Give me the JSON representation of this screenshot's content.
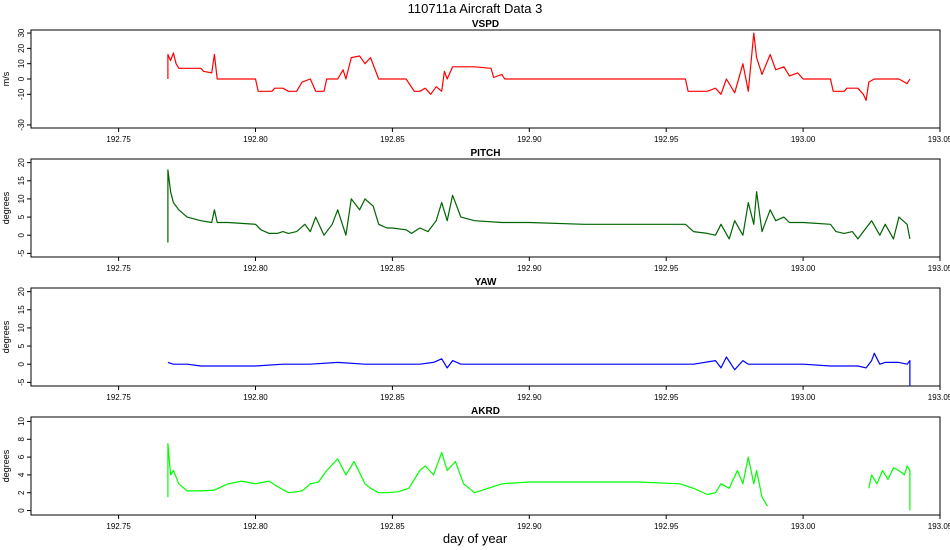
{
  "title": "110711a   Aircraft Data 3",
  "xlabel": "day of year",
  "colors": {
    "VSPD": "#ff0000",
    "PITCH": "#006400",
    "YAW": "#0000ff",
    "AKRD": "#00ff00"
  },
  "chart_data": [
    {
      "type": "line",
      "title": "VSPD",
      "ylabel": "m/s",
      "xlim": [
        192.718,
        193.05
      ],
      "ylim": [
        -32,
        32
      ],
      "yticks": [
        -30,
        -10,
        0,
        10,
        20,
        30
      ],
      "xticks": [
        192.75,
        192.8,
        192.85,
        192.9,
        192.95,
        193.0,
        193.05
      ],
      "xtick_labels": [
        "192.75",
        "192.80",
        "192.85",
        "192.90",
        "192.95",
        "193.00",
        "193.05"
      ],
      "grid": false,
      "series": [
        {
          "color": "#ff0000",
          "x": [
            192.768,
            192.768,
            192.769,
            192.77,
            192.771,
            192.772,
            192.78,
            192.781,
            192.784,
            192.785,
            192.786,
            192.79,
            192.8,
            192.801,
            192.806,
            192.807,
            192.81,
            192.812,
            192.815,
            192.817,
            192.82,
            192.822,
            192.825,
            192.826,
            192.83,
            192.832,
            192.833,
            192.835,
            192.838,
            192.84,
            192.842,
            192.845,
            192.85,
            192.855,
            192.858,
            192.86,
            192.862,
            192.864,
            192.866,
            192.868,
            192.869,
            192.87,
            192.872,
            192.88,
            192.886,
            192.887,
            192.89,
            192.891,
            192.9,
            192.92,
            192.94,
            192.957,
            192.958,
            192.965,
            192.968,
            192.97,
            192.972,
            192.975,
            192.978,
            192.98,
            192.982,
            192.983,
            192.985,
            192.988,
            192.99,
            192.993,
            192.995,
            192.998,
            193.0,
            193.005,
            193.01,
            193.011,
            193.015,
            193.016,
            193.02,
            193.022,
            193.023,
            193.024,
            193.026,
            193.028,
            193.03,
            193.035,
            193.038,
            193.039
          ],
          "y": [
            0,
            16,
            12,
            17,
            10,
            7,
            7,
            5,
            4,
            16,
            0,
            0,
            0,
            -8,
            -8,
            -6,
            -6,
            -8,
            -8,
            -2,
            0,
            -8,
            -8,
            0,
            0,
            6,
            0,
            14,
            15,
            10,
            14,
            0,
            0,
            0,
            -8,
            -8,
            -6,
            -10,
            -5,
            -8,
            5,
            0,
            8,
            8,
            7,
            1,
            3,
            0,
            0,
            0,
            0,
            0,
            -8,
            -8,
            -6,
            -10,
            0,
            -9,
            10,
            -8,
            30,
            14,
            3,
            16,
            6,
            8,
            2,
            4,
            0,
            0,
            0,
            -8,
            -8,
            -6,
            -6,
            -10,
            -14,
            -2,
            0,
            0,
            0,
            0,
            -3,
            0
          ]
        }
      ]
    },
    {
      "type": "line",
      "title": "PITCH",
      "ylabel": "degrees",
      "xlim": [
        192.718,
        193.05
      ],
      "ylim": [
        -6,
        21
      ],
      "yticks": [
        -5,
        0,
        5,
        10,
        15,
        20
      ],
      "xticks": [
        192.75,
        192.8,
        192.85,
        192.9,
        192.95,
        193.0,
        193.05
      ],
      "xtick_labels": [
        "192.75",
        "192.80",
        "192.85",
        "192.90",
        "192.95",
        "193.00",
        "193.05"
      ],
      "grid": false,
      "series": [
        {
          "color": "#006400",
          "x": [
            192.768,
            192.768,
            192.769,
            192.77,
            192.772,
            192.775,
            192.78,
            192.784,
            192.785,
            192.786,
            192.79,
            192.8,
            192.802,
            192.805,
            192.808,
            192.81,
            192.812,
            192.815,
            192.818,
            192.82,
            192.822,
            192.825,
            192.828,
            192.83,
            192.833,
            192.835,
            192.838,
            192.84,
            192.843,
            192.845,
            192.848,
            192.85,
            192.855,
            192.857,
            192.86,
            192.863,
            192.866,
            192.868,
            192.87,
            192.872,
            192.875,
            192.88,
            192.89,
            192.9,
            192.92,
            192.94,
            192.957,
            192.96,
            192.965,
            192.968,
            192.97,
            192.973,
            192.975,
            192.978,
            192.98,
            192.982,
            192.983,
            192.985,
            192.988,
            192.99,
            192.993,
            192.995,
            193.0,
            193.01,
            193.012,
            193.015,
            193.018,
            193.02,
            193.022,
            193.025,
            193.028,
            193.03,
            193.033,
            193.035,
            193.038,
            193.039
          ],
          "y": [
            -2,
            18,
            12,
            9,
            7,
            5,
            4,
            3.5,
            7,
            3.5,
            3.5,
            3,
            1.5,
            0.5,
            0.5,
            1,
            0.5,
            1,
            3,
            1,
            5,
            0,
            3,
            7,
            0,
            10,
            7,
            10,
            8,
            3,
            2,
            2,
            1.5,
            0.5,
            2,
            1,
            4,
            9,
            4,
            11,
            5,
            4,
            3.5,
            3.5,
            3,
            3,
            3,
            1,
            0.5,
            0,
            3,
            -1,
            4,
            0,
            9,
            3,
            12,
            1,
            7,
            4,
            5,
            3.5,
            3.5,
            3,
            1,
            0.5,
            1,
            -1,
            1,
            4,
            0,
            3,
            -1,
            5,
            3,
            -1
          ]
        }
      ]
    },
    {
      "type": "line",
      "title": "YAW",
      "ylabel": "degrees",
      "xlim": [
        192.718,
        193.05
      ],
      "ylim": [
        -6,
        21
      ],
      "yticks": [
        -5,
        0,
        5,
        10,
        15,
        20
      ],
      "xticks": [
        192.75,
        192.8,
        192.85,
        192.9,
        192.95,
        193.0,
        193.05
      ],
      "xtick_labels": [
        "192.75",
        "192.80",
        "192.85",
        "192.90",
        "192.95",
        "193.00",
        "193.05"
      ],
      "grid": false,
      "series": [
        {
          "color": "#0000ff",
          "x": [
            192.768,
            192.77,
            192.775,
            192.78,
            192.79,
            192.8,
            192.81,
            192.82,
            192.83,
            192.84,
            192.85,
            192.86,
            192.865,
            192.868,
            192.87,
            192.872,
            192.875,
            192.88,
            192.9,
            192.93,
            192.96,
            192.968,
            192.97,
            192.972,
            192.975,
            192.978,
            192.98,
            192.985,
            193.0,
            193.01,
            193.02,
            193.023,
            193.025,
            193.026,
            193.028,
            193.03,
            193.035,
            193.038,
            193.039,
            193.039
          ],
          "y": [
            0.5,
            0,
            0,
            -0.5,
            -0.5,
            -0.5,
            0,
            0,
            0.5,
            0,
            0,
            0,
            0.5,
            1.5,
            -1,
            1,
            0,
            0,
            0,
            0,
            0,
            1,
            -1,
            2,
            -1.5,
            1,
            0,
            0,
            0,
            -0.5,
            -0.5,
            -1,
            1,
            3,
            0,
            0.5,
            0.5,
            0,
            1,
            -6
          ]
        }
      ]
    },
    {
      "type": "line",
      "title": "AKRD",
      "ylabel": "degrees",
      "xlim": [
        192.718,
        193.05
      ],
      "ylim": [
        -0.5,
        10.5
      ],
      "yticks": [
        0,
        2,
        4,
        6,
        8,
        10
      ],
      "xticks": [
        192.75,
        192.8,
        192.85,
        192.9,
        192.95,
        193.0,
        193.05
      ],
      "xtick_labels": [
        "192.75",
        "192.80",
        "192.85",
        "192.90",
        "192.95",
        "193.00",
        "193.05"
      ],
      "grid": false,
      "series": [
        {
          "color": "#00ff00",
          "x": [
            192.768,
            192.768,
            192.769,
            192.77,
            192.772,
            192.775,
            192.78,
            192.785,
            192.79,
            192.795,
            192.8,
            192.805,
            192.808,
            192.812,
            192.815,
            192.817,
            192.82,
            192.823,
            192.826,
            192.83,
            192.833,
            192.836,
            192.84,
            192.842,
            192.845,
            192.848,
            192.852,
            192.856,
            192.858,
            192.86,
            192.862,
            192.865,
            192.868,
            192.87,
            192.873,
            192.876,
            192.88,
            192.885,
            192.89,
            192.9,
            192.92,
            192.94,
            192.955,
            192.96,
            192.965,
            192.968,
            192.97,
            192.973,
            192.976,
            192.978,
            192.98,
            192.982,
            192.983,
            192.985,
            192.987
          ],
          "y": [
            1.5,
            7.5,
            4,
            4.5,
            3,
            2.2,
            2.2,
            2.3,
            3,
            3.3,
            3,
            3.3,
            2.7,
            2,
            2.1,
            2.2,
            3,
            3.2,
            4.5,
            5.8,
            4,
            5.5,
            3,
            2.5,
            2,
            2,
            2.1,
            2.5,
            3.5,
            4.5,
            5,
            4,
            6.5,
            4.5,
            5.5,
            3,
            2,
            2.5,
            3,
            3.2,
            3.2,
            3.2,
            3,
            2.5,
            1.8,
            2,
            3,
            2.5,
            4.5,
            3,
            6,
            3,
            4.5,
            1.5,
            0.5
          ]
        },
        {
          "color": "#00ff00",
          "x": [
            193.024,
            193.025,
            193.027,
            193.029,
            193.031,
            193.033,
            193.035,
            193.037,
            193.038,
            193.039,
            193.039
          ],
          "y": [
            2.5,
            4,
            3,
            4.5,
            3.5,
            4.8,
            4.5,
            4,
            5,
            4.5,
            0
          ]
        }
      ]
    }
  ]
}
